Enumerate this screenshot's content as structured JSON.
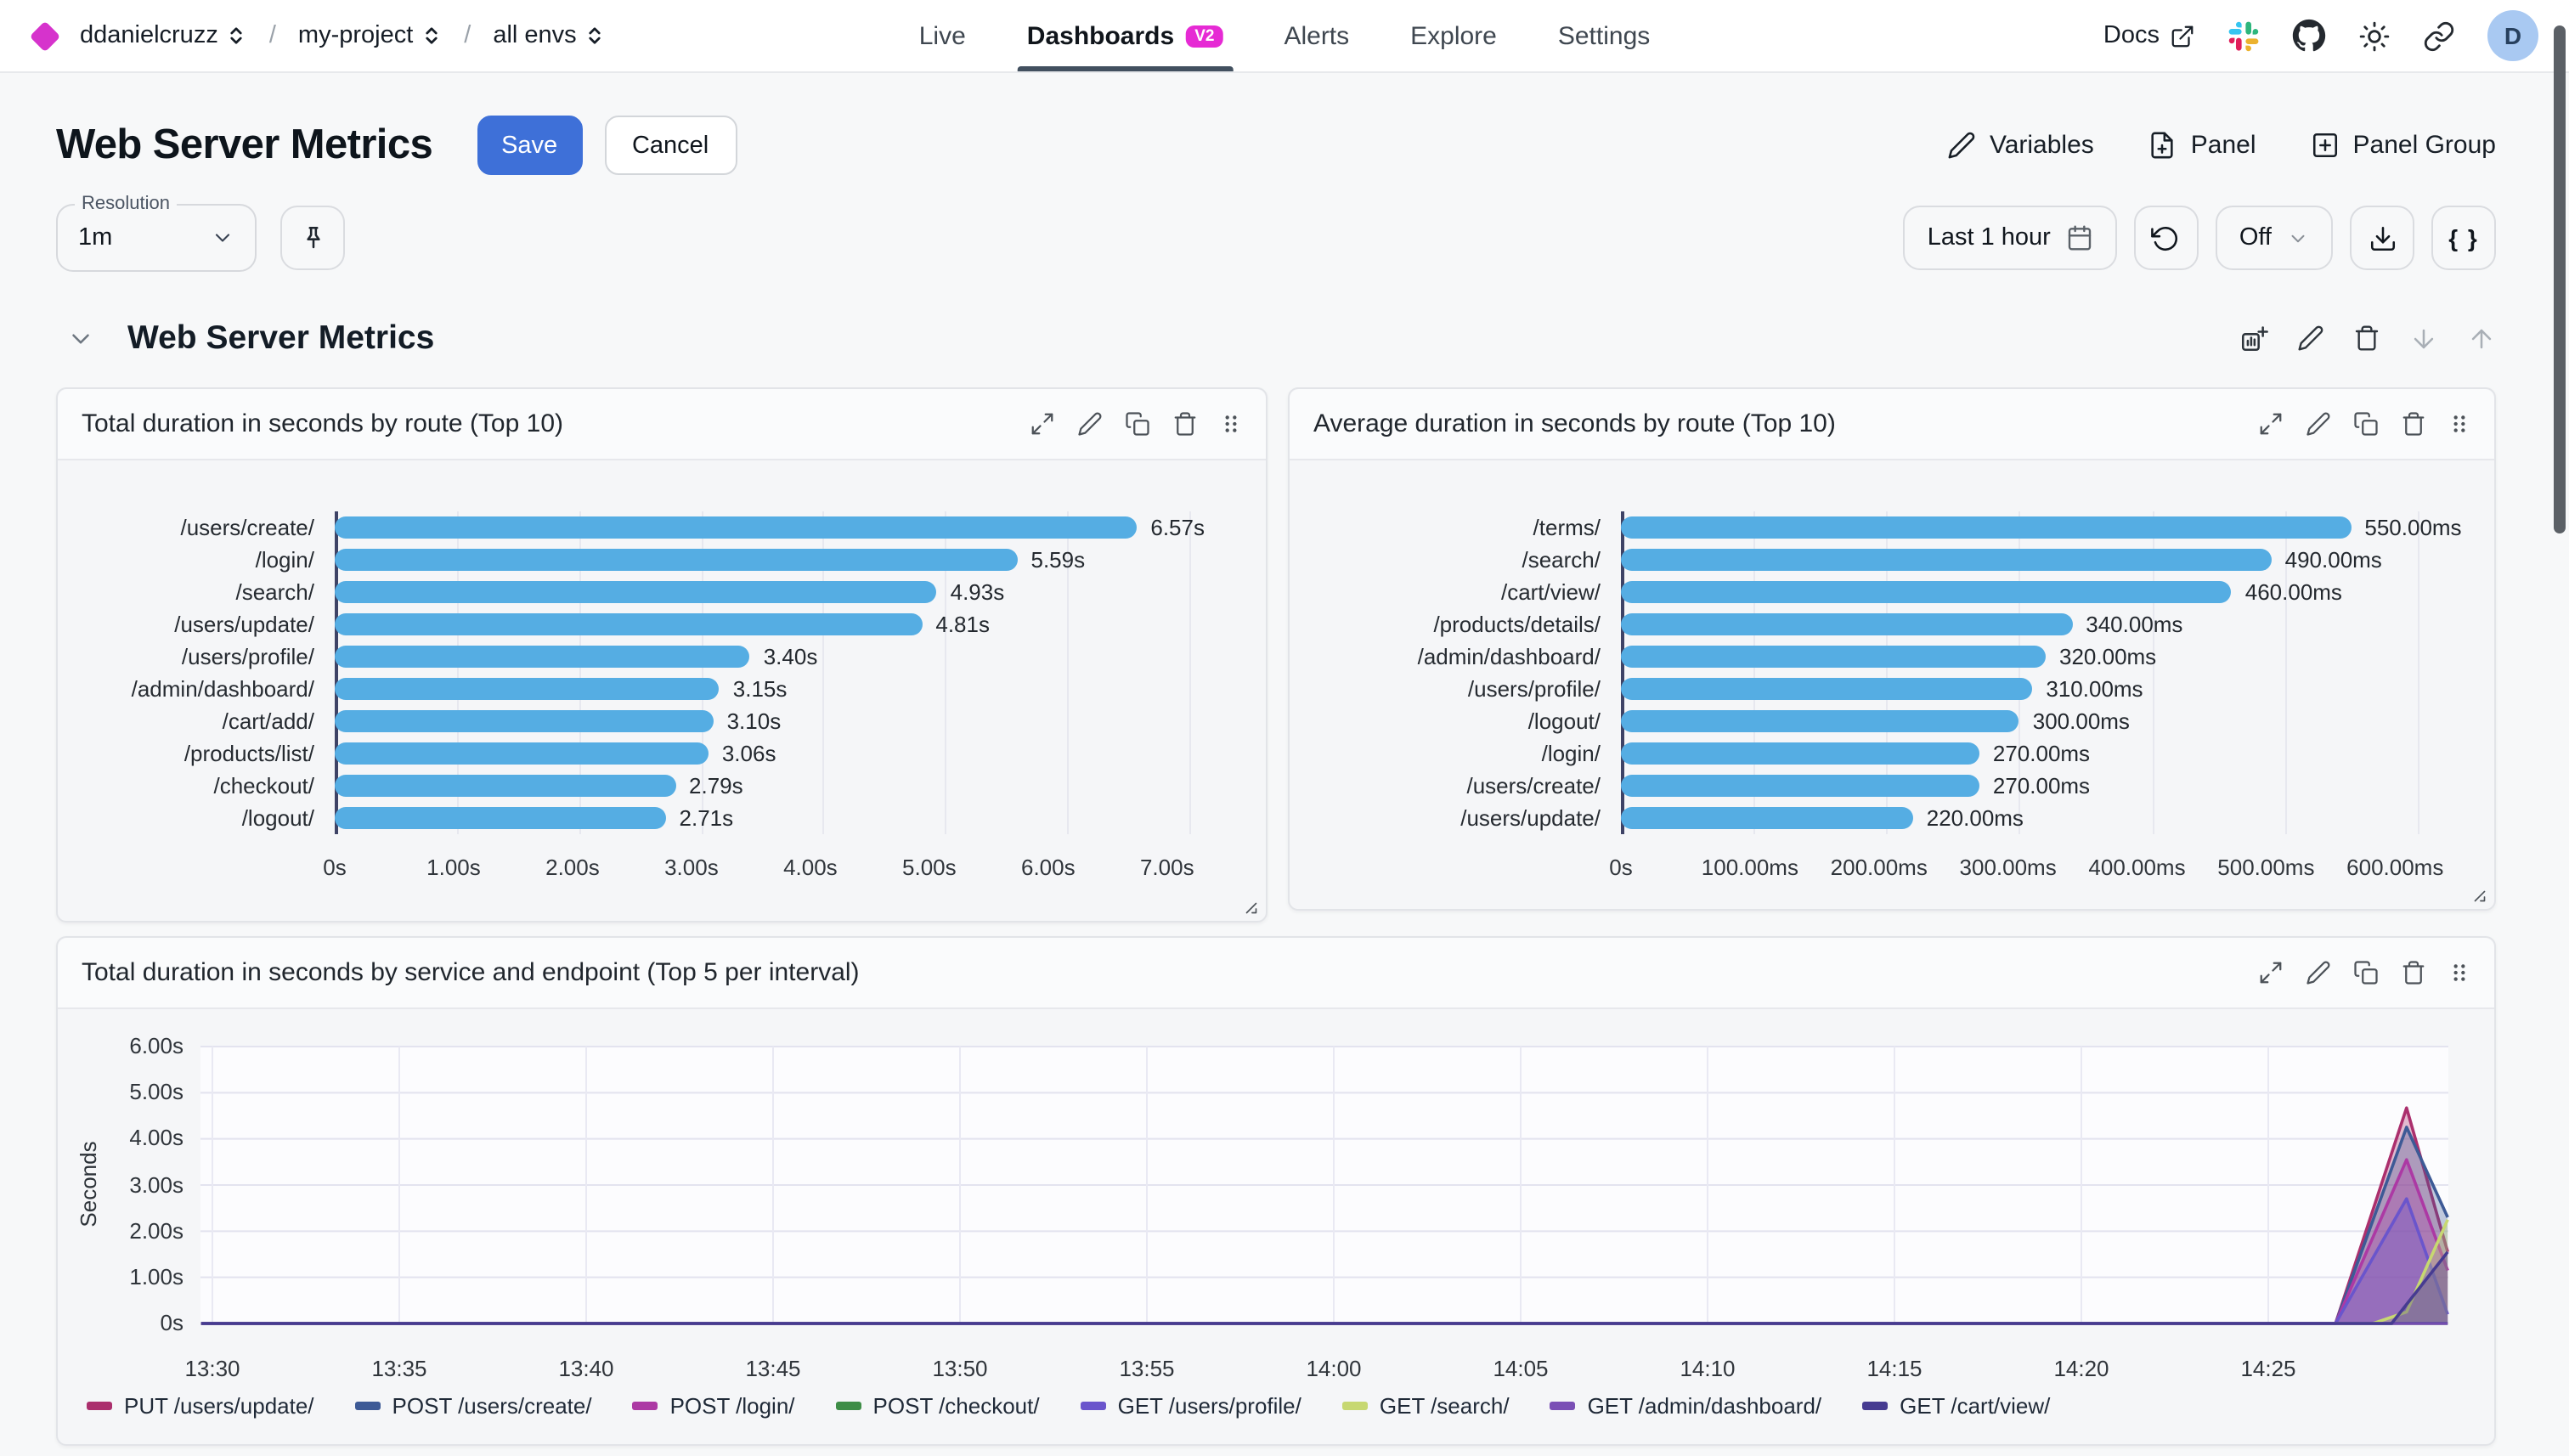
{
  "topbar": {
    "breadcrumb": [
      {
        "label": "ddanielcruzz"
      },
      {
        "label": "my-project"
      },
      {
        "label": "all envs"
      }
    ],
    "tabs": [
      {
        "label": "Live"
      },
      {
        "label": "Dashboards",
        "badge": "V2",
        "active": true
      },
      {
        "label": "Alerts"
      },
      {
        "label": "Explore"
      },
      {
        "label": "Settings"
      }
    ],
    "docs_label": "Docs",
    "icons": [
      "external-link-icon",
      "slack-icon",
      "github-icon",
      "sun-icon",
      "link-icon"
    ],
    "avatar_letter": "D"
  },
  "header": {
    "title": "Web Server Metrics",
    "save_label": "Save",
    "cancel_label": "Cancel",
    "variables_label": "Variables",
    "panel_label": "Panel",
    "panel_group_label": "Panel Group"
  },
  "toolbar": {
    "resolution_label": "Resolution",
    "resolution_value": "1m",
    "time_range_label": "Last 1 hour",
    "refresh_mode_label": "Off",
    "braces_label": "{ }",
    "icons": [
      "pin-icon",
      "calendar-icon",
      "refresh-icon",
      "chevron-down-icon",
      "download-icon",
      "braces-icon"
    ]
  },
  "section": {
    "title": "Web Server Metrics",
    "icons": [
      "add-chart-icon",
      "edit-icon",
      "delete-icon",
      "move-down-icon",
      "move-up-icon"
    ]
  },
  "panel_action_icons": [
    "expand-icon",
    "edit-icon",
    "duplicate-icon",
    "delete-icon",
    "drag-handle-icon"
  ],
  "colors": {
    "accent_blue": "#3e70d8",
    "bar_blue": "#55ade3",
    "badge_magenta": "#e62ad4",
    "logo_magenta": "#d633cc",
    "active_tab_underline": "#42505f",
    "avatar_bg": "#a9c9f2"
  },
  "chart_data": [
    {
      "type": "bar",
      "orientation": "horizontal",
      "title": "Total duration in seconds by route (Top 10)",
      "categories": [
        "/users/create/",
        "/login/",
        "/search/",
        "/users/update/",
        "/users/profile/",
        "/admin/dashboard/",
        "/cart/add/",
        "/products/list/",
        "/checkout/",
        "/logout/"
      ],
      "values": [
        6.57,
        5.59,
        4.93,
        4.81,
        3.4,
        3.15,
        3.1,
        3.06,
        2.79,
        2.71
      ],
      "value_labels": [
        "6.57s",
        "5.59s",
        "4.93s",
        "4.81s",
        "3.40s",
        "3.15s",
        "3.10s",
        "3.06s",
        "2.79s",
        "2.71s"
      ],
      "x_tick_labels": [
        "0s",
        "1.00s",
        "2.00s",
        "3.00s",
        "4.00s",
        "5.00s",
        "6.00s",
        "7.00s"
      ],
      "x_tick_values": [
        0,
        1,
        2,
        3,
        4,
        5,
        6,
        7
      ],
      "xmax": 7.43,
      "bar_color": "#55ade3",
      "grid": true
    },
    {
      "type": "bar",
      "orientation": "horizontal",
      "title": "Average duration in seconds by route (Top 10)",
      "categories": [
        "/terms/",
        "/search/",
        "/cart/view/",
        "/products/details/",
        "/admin/dashboard/",
        "/users/profile/",
        "/logout/",
        "/login/",
        "/users/create/",
        "/users/update/"
      ],
      "values": [
        550,
        490,
        460,
        340,
        320,
        310,
        300,
        270,
        270,
        220
      ],
      "value_labels": [
        "550.00ms",
        "490.00ms",
        "460.00ms",
        "340.00ms",
        "320.00ms",
        "310.00ms",
        "300.00ms",
        "270.00ms",
        "270.00ms",
        "220.00ms"
      ],
      "x_tick_labels": [
        "0s",
        "100.00ms",
        "200.00ms",
        "300.00ms",
        "400.00ms",
        "500.00ms",
        "600.00ms"
      ],
      "x_tick_values": [
        0,
        100,
        200,
        300,
        400,
        500,
        600
      ],
      "xmax": 640,
      "bar_color": "#55ade3",
      "grid": true
    },
    {
      "type": "area",
      "title": "Total duration in seconds by service and endpoint (Top 5 per interval)",
      "ylabel": "Seconds",
      "y_tick_labels": [
        "6.00s",
        "5.00s",
        "4.00s",
        "3.00s",
        "2.00s",
        "1.00s",
        "0s"
      ],
      "y_tick_values": [
        6,
        5,
        4,
        3,
        2,
        1,
        0
      ],
      "ylim": [
        0,
        6
      ],
      "x_tick_labels": [
        "13:30",
        "13:35",
        "13:40",
        "13:45",
        "13:50",
        "13:55",
        "14:00",
        "14:05",
        "14:10",
        "14:15",
        "14:20",
        "14:25"
      ],
      "grid": true,
      "legend_position": "bottom",
      "series": [
        {
          "name": "PUT /users/update/",
          "color": "#ab2f6d",
          "points": [
            [
              -0.3,
              0
            ],
            [
              56.8,
              0
            ],
            [
              58.7,
              4.67
            ],
            [
              59.8,
              1.55
            ]
          ]
        },
        {
          "name": "POST /users/create/",
          "color": "#3d5a96",
          "points": [
            [
              -0.3,
              0
            ],
            [
              56.8,
              0
            ],
            [
              58.7,
              4.25
            ],
            [
              59.8,
              2.3
            ]
          ]
        },
        {
          "name": "POST /login/",
          "color": "#ac39a4",
          "points": [
            [
              -0.3,
              0
            ],
            [
              56.8,
              0
            ],
            [
              58.7,
              3.55
            ],
            [
              59.8,
              1.15
            ]
          ]
        },
        {
          "name": "POST /checkout/",
          "color": "#3e8d47",
          "points": [
            [
              -0.3,
              0
            ],
            [
              59.8,
              0
            ]
          ]
        },
        {
          "name": "GET /users/profile/",
          "color": "#6a55cc",
          "points": [
            [
              -0.3,
              0
            ],
            [
              56.8,
              0
            ],
            [
              58.7,
              2.7
            ],
            [
              59.8,
              0.2
            ]
          ]
        },
        {
          "name": "GET /search/",
          "color": "#c7d871",
          "points": [
            [
              -0.3,
              0
            ],
            [
              57.8,
              0
            ],
            [
              58.7,
              0.25
            ],
            [
              59.8,
              2.25
            ]
          ]
        },
        {
          "name": "GET /admin/dashboard/",
          "color": "#7a4fb5",
          "points": [
            [
              -0.3,
              0
            ],
            [
              59.8,
              0
            ]
          ]
        },
        {
          "name": "GET /cart/view/",
          "color": "#463b91",
          "points": [
            [
              -0.3,
              0
            ],
            [
              58.3,
              0
            ],
            [
              59.8,
              1.55
            ]
          ]
        }
      ]
    }
  ]
}
